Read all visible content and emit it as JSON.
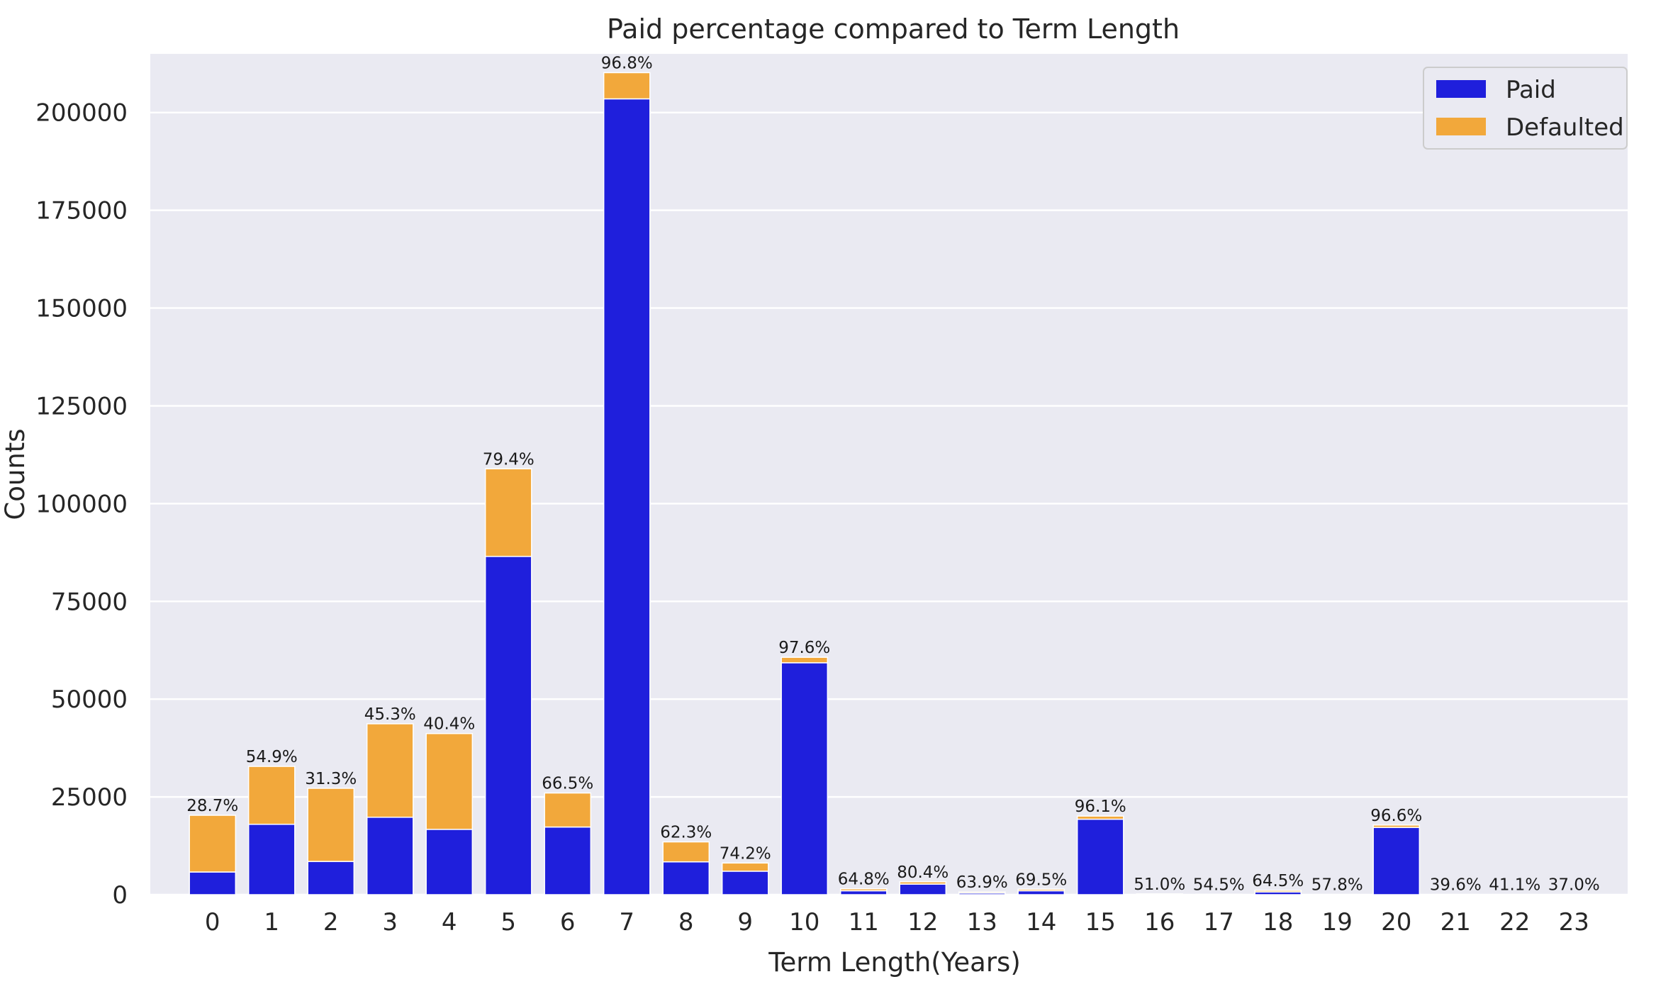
{
  "chart_data": {
    "type": "bar",
    "stacked": true,
    "title": "Paid percentage compared to Term Length",
    "xlabel": "Term Length(Years)",
    "ylabel": "Counts",
    "ylim": [
      0,
      215000
    ],
    "yticks": [
      0,
      25000,
      50000,
      75000,
      100000,
      125000,
      150000,
      175000,
      200000
    ],
    "grid": true,
    "legend_position": "top-right",
    "categories": [
      "0",
      "1",
      "2",
      "3",
      "4",
      "5",
      "6",
      "7",
      "8",
      "9",
      "10",
      "11",
      "12",
      "13",
      "14",
      "15",
      "16",
      "17",
      "18",
      "19",
      "20",
      "21",
      "22",
      "23"
    ],
    "series": [
      {
        "name": "Paid",
        "color": "#1f1fdc",
        "values": [
          5800,
          18000,
          8500,
          19800,
          16700,
          86500,
          17300,
          203500,
          8400,
          6000,
          59300,
          1000,
          2700,
          400,
          1000,
          19300,
          100,
          60,
          700,
          40,
          17200,
          30,
          30,
          20
        ]
      },
      {
        "name": "Defaulted",
        "color": "#f2a83b",
        "values": [
          14500,
          14800,
          18700,
          23900,
          24500,
          22400,
          8700,
          6700,
          5100,
          2100,
          1400,
          500,
          600,
          300,
          400,
          800,
          100,
          50,
          400,
          30,
          600,
          40,
          40,
          30
        ]
      }
    ],
    "annotations": [
      "28.7%",
      "54.9%",
      "31.3%",
      "45.3%",
      "40.4%",
      "79.4%",
      "66.5%",
      "96.8%",
      "62.3%",
      "74.2%",
      "97.6%",
      "64.8%",
      "80.4%",
      "63.9%",
      "69.5%",
      "96.1%",
      "51.0%",
      "54.5%",
      "64.5%",
      "57.8%",
      "96.6%",
      "39.6%",
      "41.1%",
      "37.0%"
    ],
    "colors": {
      "plot_background": "#eaeaf2",
      "grid": "#ffffff",
      "paid": "#1f1fdc",
      "defaulted": "#f2a83b"
    }
  }
}
